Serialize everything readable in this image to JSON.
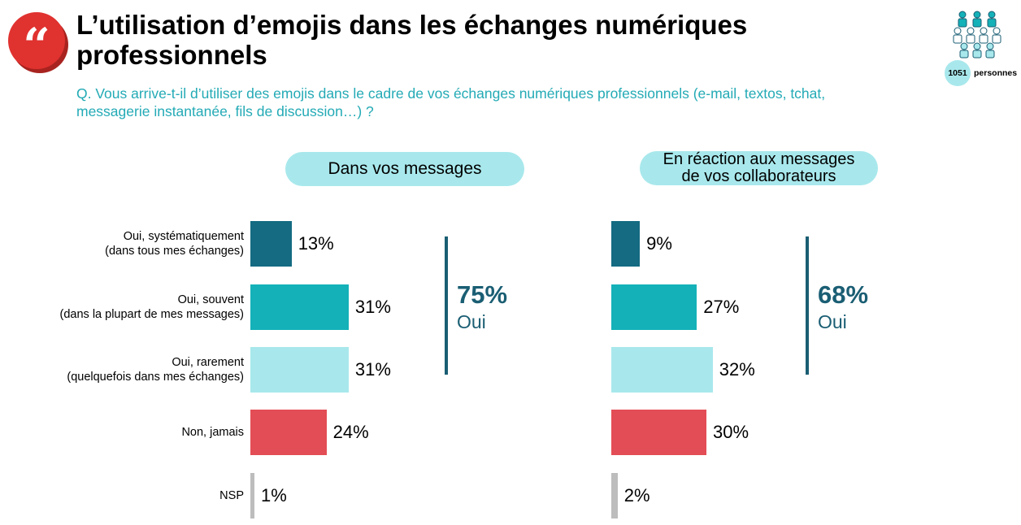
{
  "header": {
    "title": "L’utilisation d’emojis dans les échanges numériques professionnels",
    "question": "Q. Vous arrive-t-il d’utiliser des emojis dans le cadre de vos échanges numériques professionnels (e-mail, textos, tchat, messagerie instantanée, fils de discussion…) ?",
    "quote_glyph": "“",
    "sample_size": "1051",
    "sample_label": "personnes"
  },
  "colors": {
    "accent_red": "#e0322f",
    "question_text": "#23aab5",
    "pill": "#a8e8ec",
    "summary": "#1a5e73"
  },
  "chart_data": [
    {
      "type": "bar",
      "title": "Dans vos messages",
      "categories": [
        "Oui, systématiquement\n(dans tous mes échanges)",
        "Oui, souvent\n(dans la plupart de mes messages)",
        "Oui, rarement\n(quelquefois dans mes échanges)",
        "Non, jamais",
        "NSP"
      ],
      "values": [
        13,
        31,
        31,
        24,
        1
      ],
      "value_labels": [
        "13%",
        "31%",
        "31%",
        "24%",
        "1%"
      ],
      "bar_colors": [
        "#146b82",
        "#14b1b8",
        "#a8e8ec",
        "#e34d55",
        "#bdbdbd"
      ],
      "summary": {
        "value": "75%",
        "label": "Oui"
      }
    },
    {
      "type": "bar",
      "title": "En réaction aux messages\nde vos collaborateurs",
      "categories": [
        "Oui, systématiquement\n(dans tous mes échanges)",
        "Oui, souvent\n(dans la plupart de mes messages)",
        "Oui, rarement\n(quelquefois dans mes échanges)",
        "Non, jamais",
        "NSP"
      ],
      "values": [
        9,
        27,
        32,
        30,
        2
      ],
      "value_labels": [
        "9%",
        "27%",
        "32%",
        "30%",
        "2%"
      ],
      "bar_colors": [
        "#146b82",
        "#14b1b8",
        "#a8e8ec",
        "#e34d55",
        "#bdbdbd"
      ],
      "summary": {
        "value": "68%",
        "label": "Oui"
      }
    }
  ]
}
